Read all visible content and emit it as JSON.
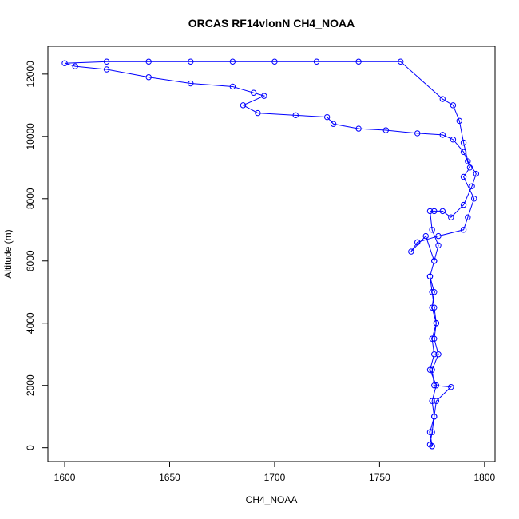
{
  "chart_data": {
    "type": "line",
    "marker": "circle",
    "title": "ORCAS RF14vlonN CH4_NOAA",
    "x_label": "CH4_NOAA",
    "y_label": "Altitude (m)",
    "xlim": [
      1592,
      1805
    ],
    "ylim": [
      -444,
      12894
    ],
    "xticks": [
      1600,
      1650,
      1700,
      1750,
      1800
    ],
    "yticks": [
      0,
      2000,
      4000,
      6000,
      8000,
      10000,
      12000
    ],
    "series": [
      {
        "color": "#0000ff",
        "x": [
          1775,
          1774,
          1776,
          1775,
          1777,
          1774,
          1776,
          1775,
          1777,
          1776,
          1775,
          1774,
          1776,
          1778,
          1775,
          1774,
          1776,
          1780,
          1784,
          1790,
          1794,
          1796,
          1792,
          1790,
          1788,
          1785,
          1780,
          1760,
          1740,
          1720,
          1700,
          1680,
          1660,
          1640,
          1620,
          1600,
          1605,
          1620,
          1640,
          1660,
          1680,
          1690,
          1695,
          1685,
          1692,
          1710,
          1725,
          1728,
          1740,
          1753,
          1768,
          1780,
          1785,
          1790,
          1793,
          1790,
          1795,
          1792,
          1790,
          1778,
          1768,
          1765,
          1772,
          1776,
          1774,
          1776,
          1775,
          1777,
          1776,
          1778,
          1775,
          1776,
          1784,
          1777,
          1776,
          1775,
          1774,
          1775
        ],
        "values": [
          50,
          500,
          1000,
          1500,
          2000,
          2500,
          3000,
          3500,
          4000,
          4500,
          5000,
          5500,
          6000,
          6500,
          7000,
          7600,
          7600,
          7600,
          7400,
          7800,
          8400,
          8800,
          9200,
          9800,
          10500,
          11000,
          11200,
          12400,
          12400,
          12400,
          12400,
          12400,
          12400,
          12400,
          12400,
          12350,
          12250,
          12150,
          11900,
          11700,
          11600,
          11400,
          11300,
          11000,
          10750,
          10680,
          10620,
          10400,
          10250,
          10200,
          10100,
          10050,
          9900,
          9500,
          9000,
          8700,
          8000,
          7400,
          7000,
          6800,
          6600,
          6300,
          6800,
          6000,
          5500,
          5000,
          4500,
          4000,
          3500,
          3000,
          2500,
          2000,
          1950,
          1500,
          1000,
          500,
          100,
          50
        ]
      }
    ]
  }
}
